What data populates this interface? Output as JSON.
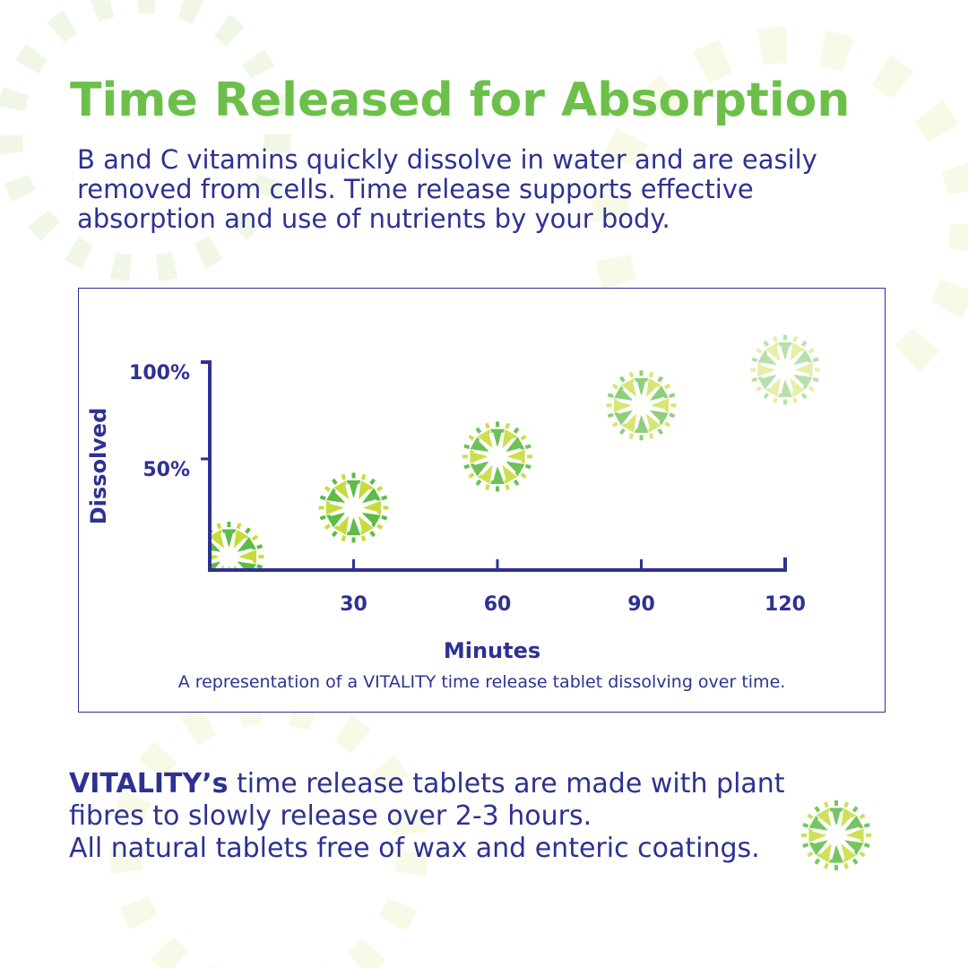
{
  "title": "Time Released for Absorption",
  "intro_lines": [
    "B and C vitamins quickly dissolve in water and are easily",
    "removed from cells. Time release supports effective",
    "absorption and use of nutrients by your body."
  ],
  "colors": {
    "title_green": "#6cc04a",
    "navy": "#2e3192",
    "tablet_green": "#5dbb46",
    "tablet_lime": "#c6dc3c"
  },
  "chart_data": {
    "type": "scatter",
    "marker": "tablet-icon",
    "xlabel": "Minutes",
    "ylabel": "Dissolved",
    "x_ticks": [
      "30",
      "60",
      "90",
      "120"
    ],
    "y_ticks": [
      "50%",
      "100%"
    ],
    "xlim": [
      0,
      120
    ],
    "ylim": [
      0,
      100
    ],
    "grid": false,
    "points": [
      {
        "x": 4,
        "y": 6
      },
      {
        "x": 30,
        "y": 28
      },
      {
        "x": 60,
        "y": 51
      },
      {
        "x": 90,
        "y": 74
      },
      {
        "x": 120,
        "y": 90
      }
    ],
    "caption": "A representation of a VITALITY time release tablet dissolving over time."
  },
  "bottom": {
    "brand": "VITALITY’s",
    "line1_rest": " time release tablets are made with plant",
    "line2": "fibres to slowly release over 2-3 hours.",
    "line3": "All natural tablets free of wax and enteric coatings."
  }
}
